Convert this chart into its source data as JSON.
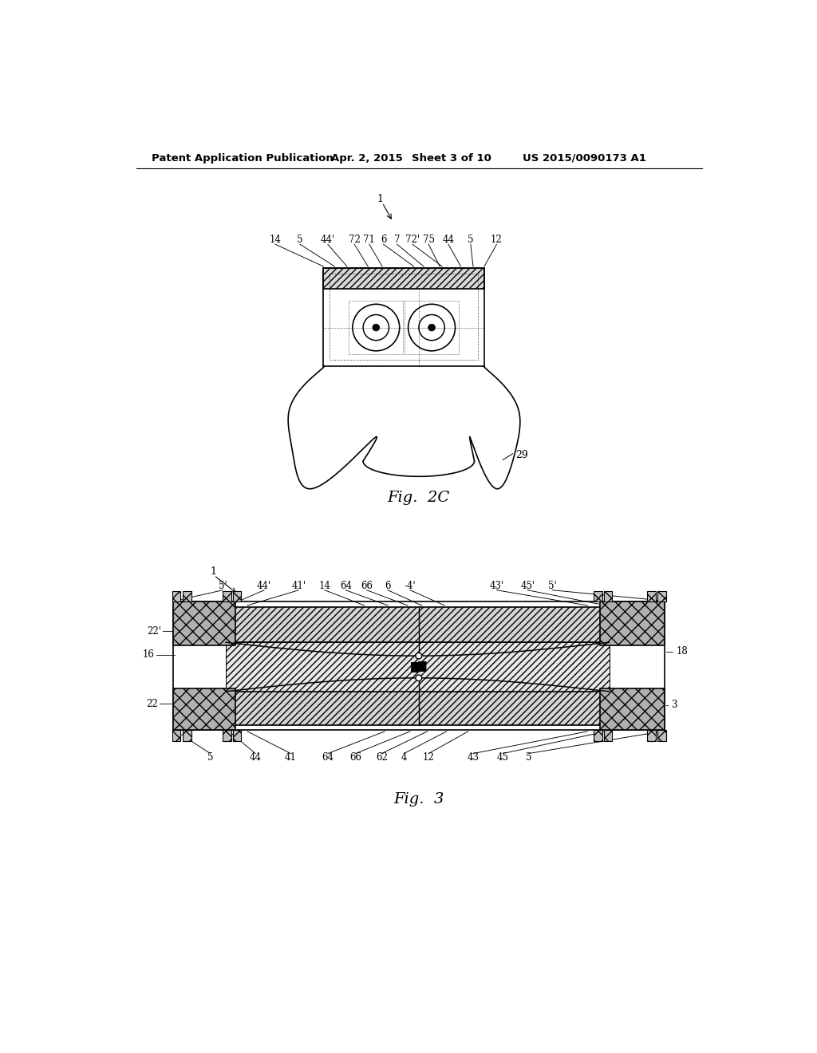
{
  "bg_color": "#ffffff",
  "header_text": "Patent Application Publication",
  "header_date": "Apr. 2, 2015",
  "header_sheet": "Sheet 3 of 10",
  "header_patent": "US 2015/0090173 A1",
  "fig2c_label": "Fig.  2C",
  "fig3_label": "Fig.  3",
  "line_color": "#000000"
}
